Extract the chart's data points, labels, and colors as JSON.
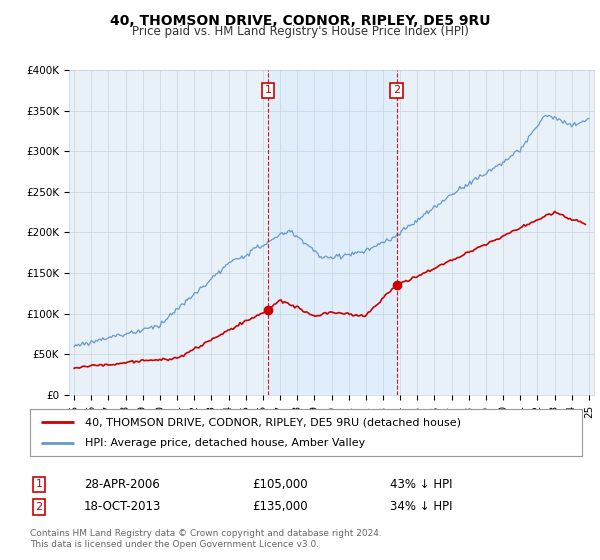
{
  "title": "40, THOMSON DRIVE, CODNOR, RIPLEY, DE5 9RU",
  "subtitle": "Price paid vs. HM Land Registry's House Price Index (HPI)",
  "footer": "Contains HM Land Registry data © Crown copyright and database right 2024.\nThis data is licensed under the Open Government Licence v3.0.",
  "legend_line1": "40, THOMSON DRIVE, CODNOR, RIPLEY, DE5 9RU (detached house)",
  "legend_line2": "HPI: Average price, detached house, Amber Valley",
  "sale1_label": "1",
  "sale1_date": "28-APR-2006",
  "sale1_price": "£105,000",
  "sale1_hpi": "43% ↓ HPI",
  "sale2_label": "2",
  "sale2_date": "18-OCT-2013",
  "sale2_price": "£135,000",
  "sale2_hpi": "34% ↓ HPI",
  "sale1_year": 2006.3,
  "sale1_value": 105000,
  "sale2_year": 2013.8,
  "sale2_value": 135000,
  "red_color": "#cc0000",
  "blue_color": "#6699cc",
  "shade_color": "#ddeeff",
  "bg_color": "#e8f0f8",
  "plot_bg": "#ffffff",
  "grid_color": "#c8d4e0",
  "ylim": [
    0,
    400000
  ],
  "xlim_start": 1994.7,
  "xlim_end": 2025.3,
  "yticks": [
    0,
    50000,
    100000,
    150000,
    200000,
    250000,
    300000,
    350000,
    400000
  ],
  "ytick_labels": [
    "£0",
    "£50K",
    "£100K",
    "£150K",
    "£200K",
    "£250K",
    "£300K",
    "£350K",
    "£400K"
  ],
  "xticks": [
    1995,
    1996,
    1997,
    1998,
    1999,
    2000,
    2001,
    2002,
    2003,
    2004,
    2005,
    2006,
    2007,
    2008,
    2009,
    2010,
    2011,
    2012,
    2013,
    2014,
    2015,
    2016,
    2017,
    2018,
    2019,
    2020,
    2021,
    2022,
    2023,
    2024,
    2025
  ],
  "xtick_labels": [
    "95",
    "96",
    "97",
    "98",
    "99",
    "00",
    "01",
    "02",
    "03",
    "04",
    "05",
    "06",
    "07",
    "08",
    "09",
    "10",
    "11",
    "12",
    "13",
    "14",
    "15",
    "16",
    "17",
    "18",
    "19",
    "20",
    "21",
    "22",
    "23",
    "24",
    "25"
  ]
}
